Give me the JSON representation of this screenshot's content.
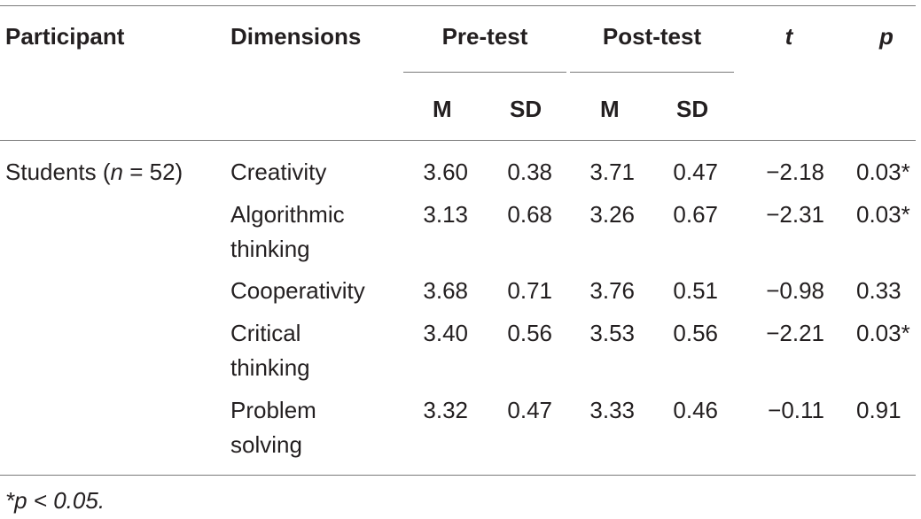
{
  "header": {
    "participant": "Participant",
    "dimensions": "Dimensions",
    "pre_test": "Pre-test",
    "post_test": "Post-test",
    "t": "t",
    "p": "p",
    "pre_m": "M",
    "pre_sd": "SD",
    "post_m": "M",
    "post_sd": "SD"
  },
  "participant": {
    "prefix": "Students (",
    "n_var": "n",
    "suffix": " = 52)"
  },
  "rows": [
    {
      "dim1": "Creativity",
      "dim2": "",
      "pre_m": "3.60",
      "pre_sd": "0.38",
      "post_m": "3.71",
      "post_sd": "0.47",
      "t": "−2.18",
      "p": "0.03*"
    },
    {
      "dim1": "Algorithmic",
      "dim2": "thinking",
      "pre_m": "3.13",
      "pre_sd": "0.68",
      "post_m": "3.26",
      "post_sd": "0.67",
      "t": "−2.31",
      "p": "0.03*"
    },
    {
      "dim1": "Cooperativity",
      "dim2": "",
      "pre_m": "3.68",
      "pre_sd": "0.71",
      "post_m": "3.76",
      "post_sd": "0.51",
      "t": "−0.98",
      "p": "0.33"
    },
    {
      "dim1": "Critical",
      "dim2": "thinking",
      "pre_m": "3.40",
      "pre_sd": "0.56",
      "post_m": "3.53",
      "post_sd": "0.56",
      "t": "−2.21",
      "p": "0.03*"
    },
    {
      "dim1": "Problem",
      "dim2": "solving",
      "pre_m": "3.32",
      "pre_sd": "0.47",
      "post_m": "3.33",
      "post_sd": "0.46",
      "t": "−0.11",
      "p": "0.91"
    }
  ],
  "footnote": "*p < 0.05."
}
